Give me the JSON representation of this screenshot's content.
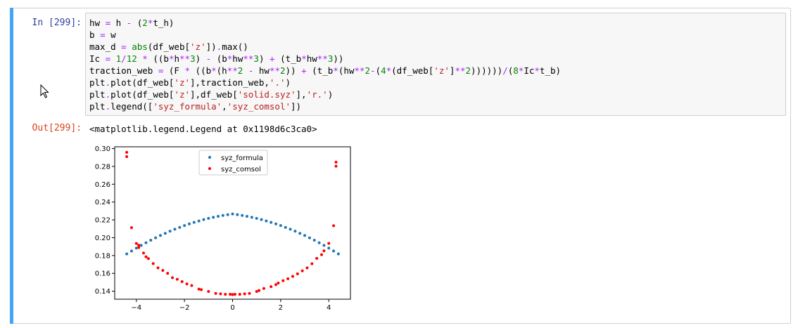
{
  "cell": {
    "in_prompt": "In [299]:",
    "out_prompt": "Out[299]:",
    "code_lines": [
      [
        [
          "hw ",
          "#000000"
        ],
        [
          "=",
          "#aa22ff"
        ],
        [
          " h ",
          "#000000"
        ],
        [
          "-",
          "#aa22ff"
        ],
        [
          " (",
          "#000000"
        ],
        [
          "2",
          "#008800"
        ],
        [
          "*",
          "#aa22ff"
        ],
        [
          "t_h)",
          "#000000"
        ]
      ],
      [
        [
          "b ",
          "#000000"
        ],
        [
          "=",
          "#aa22ff"
        ],
        [
          " w",
          "#000000"
        ]
      ],
      [
        [
          "max_d ",
          "#000000"
        ],
        [
          "=",
          "#aa22ff"
        ],
        [
          " ",
          "#000000"
        ],
        [
          "abs",
          "#008000"
        ],
        [
          "(df_web[",
          "#000000"
        ],
        [
          "'z'",
          "#ba2121"
        ],
        [
          "])",
          "#000000"
        ],
        [
          ".",
          "#aa22ff"
        ],
        [
          "max()",
          "#000000"
        ]
      ],
      [
        [
          "Ic ",
          "#000000"
        ],
        [
          "=",
          "#aa22ff"
        ],
        [
          " ",
          "#000000"
        ],
        [
          "1",
          "#008800"
        ],
        [
          "/",
          "#aa22ff"
        ],
        [
          "12",
          "#008800"
        ],
        [
          " ",
          "#000000"
        ],
        [
          "*",
          "#aa22ff"
        ],
        [
          " ((b",
          "#000000"
        ],
        [
          "*",
          "#aa22ff"
        ],
        [
          "h",
          "#000000"
        ],
        [
          "**",
          "#aa22ff"
        ],
        [
          "3",
          "#008800"
        ],
        [
          ") ",
          "#000000"
        ],
        [
          "-",
          "#aa22ff"
        ],
        [
          " (b",
          "#000000"
        ],
        [
          "*",
          "#aa22ff"
        ],
        [
          "hw",
          "#000000"
        ],
        [
          "**",
          "#aa22ff"
        ],
        [
          "3",
          "#008800"
        ],
        [
          ") ",
          "#000000"
        ],
        [
          "+",
          "#aa22ff"
        ],
        [
          " (t_b",
          "#000000"
        ],
        [
          "*",
          "#aa22ff"
        ],
        [
          "hw",
          "#000000"
        ],
        [
          "**",
          "#aa22ff"
        ],
        [
          "3",
          "#008800"
        ],
        [
          "))",
          "#000000"
        ]
      ],
      [
        [
          "traction_web ",
          "#000000"
        ],
        [
          "=",
          "#aa22ff"
        ],
        [
          " (F ",
          "#000000"
        ],
        [
          "*",
          "#aa22ff"
        ],
        [
          " ((b",
          "#000000"
        ],
        [
          "*",
          "#aa22ff"
        ],
        [
          "(h",
          "#000000"
        ],
        [
          "**",
          "#aa22ff"
        ],
        [
          "2",
          "#008800"
        ],
        [
          " ",
          "#000000"
        ],
        [
          "-",
          "#aa22ff"
        ],
        [
          " hw",
          "#000000"
        ],
        [
          "**",
          "#aa22ff"
        ],
        [
          "2",
          "#008800"
        ],
        [
          ")) ",
          "#000000"
        ],
        [
          "+",
          "#aa22ff"
        ],
        [
          " (t_b",
          "#000000"
        ],
        [
          "*",
          "#aa22ff"
        ],
        [
          "(hw",
          "#000000"
        ],
        [
          "**",
          "#aa22ff"
        ],
        [
          "2",
          "#008800"
        ],
        [
          "-",
          "#aa22ff"
        ],
        [
          "(",
          "#000000"
        ],
        [
          "4",
          "#008800"
        ],
        [
          "*",
          "#aa22ff"
        ],
        [
          "(df_web[",
          "#000000"
        ],
        [
          "'z'",
          "#ba2121"
        ],
        [
          "]",
          "#000000"
        ],
        [
          "**",
          "#aa22ff"
        ],
        [
          "2",
          "#008800"
        ],
        [
          "))))))",
          "#000000"
        ],
        [
          "/",
          "#aa22ff"
        ],
        [
          "(",
          "#000000"
        ],
        [
          "8",
          "#008800"
        ],
        [
          "*",
          "#aa22ff"
        ],
        [
          "Ic",
          "#000000"
        ],
        [
          "*",
          "#aa22ff"
        ],
        [
          "t_b)",
          "#000000"
        ]
      ],
      [
        [
          "plt",
          "#000000"
        ],
        [
          ".",
          "#aa22ff"
        ],
        [
          "plot(df_web[",
          "#000000"
        ],
        [
          "'z'",
          "#ba2121"
        ],
        [
          "],traction_web,",
          "#000000"
        ],
        [
          "'.'",
          "#ba2121"
        ],
        [
          ")",
          "#000000"
        ]
      ],
      [
        [
          "plt",
          "#000000"
        ],
        [
          ".",
          "#aa22ff"
        ],
        [
          "plot(df_web[",
          "#000000"
        ],
        [
          "'z'",
          "#ba2121"
        ],
        [
          "],df_web[",
          "#000000"
        ],
        [
          "'solid.syz'",
          "#ba2121"
        ],
        [
          "],",
          "#000000"
        ],
        [
          "'r.'",
          "#ba2121"
        ],
        [
          ")",
          "#000000"
        ]
      ],
      [
        [
          "plt",
          "#000000"
        ],
        [
          ".",
          "#aa22ff"
        ],
        [
          "legend([",
          "#000000"
        ],
        [
          "'syz_formula'",
          "#ba2121"
        ],
        [
          ",",
          "#000000"
        ],
        [
          "'syz_comsol'",
          "#ba2121"
        ],
        [
          "])",
          "#000000"
        ]
      ]
    ],
    "output_text": "<matplotlib.legend.Legend at 0x1198d6c3ca0>"
  },
  "chart_data": {
    "type": "scatter",
    "xlim": [
      -4.9,
      4.9
    ],
    "ylim": [
      0.131,
      0.302
    ],
    "xticks": [
      -4,
      -2,
      0,
      2,
      4
    ],
    "xtick_labels": [
      "−4",
      "−2",
      "0",
      "2",
      "4"
    ],
    "yticks": [
      0.14,
      0.16,
      0.18,
      0.2,
      0.22,
      0.24,
      0.26,
      0.28,
      0.3
    ],
    "ytick_labels": [
      "0.14",
      "0.16",
      "0.18",
      "0.20",
      "0.22",
      "0.24",
      "0.26",
      "0.28",
      "0.30"
    ],
    "legend_position": "upper-center",
    "series": [
      {
        "name": "syz_formula",
        "color": "#1f77b4",
        "x": [
          -4.4,
          -4.2,
          -4.0,
          -3.8,
          -3.6,
          -3.4,
          -3.2,
          -3.0,
          -2.8,
          -2.6,
          -2.4,
          -2.2,
          -2.0,
          -1.8,
          -1.6,
          -1.4,
          -1.2,
          -1.0,
          -0.8,
          -0.6,
          -0.4,
          -0.2,
          0.0,
          0.2,
          0.4,
          0.6,
          0.8,
          1.0,
          1.2,
          1.4,
          1.6,
          1.8,
          2.0,
          2.2,
          2.4,
          2.6,
          2.8,
          3.0,
          3.2,
          3.4,
          3.6,
          3.8,
          4.0,
          4.2,
          4.4
        ],
        "y": [
          0.1818,
          0.1851,
          0.1883,
          0.1914,
          0.1943,
          0.1972,
          0.1999,
          0.2025,
          0.2049,
          0.2073,
          0.2095,
          0.2116,
          0.2136,
          0.2155,
          0.2172,
          0.2188,
          0.2203,
          0.2217,
          0.2229,
          0.224,
          0.225,
          0.2259,
          0.2266,
          0.2259,
          0.225,
          0.224,
          0.2229,
          0.2217,
          0.2203,
          0.2188,
          0.2172,
          0.2155,
          0.2136,
          0.2116,
          0.2095,
          0.2073,
          0.2049,
          0.2025,
          0.1999,
          0.1972,
          0.1943,
          0.1914,
          0.1883,
          0.1851,
          0.1818
        ]
      },
      {
        "name": "syz_comsol",
        "color": "#ff0000",
        "x": [
          -4.4,
          -4.4,
          -4.2,
          -4.0,
          -3.9,
          -3.9,
          -3.7,
          -3.6,
          -3.5,
          -3.3,
          -3.1,
          -2.9,
          -2.7,
          -2.5,
          -2.3,
          -2.1,
          -1.9,
          -1.7,
          -1.4,
          -1.3,
          -1.0,
          -0.7,
          -0.5,
          -0.3,
          -0.1,
          0.0,
          0.1,
          0.3,
          0.5,
          0.7,
          1.0,
          1.1,
          1.3,
          1.6,
          1.8,
          1.9,
          2.1,
          2.3,
          2.5,
          2.7,
          2.9,
          3.1,
          3.3,
          3.5,
          3.7,
          3.8,
          4.0,
          4.2,
          4.3,
          4.3
        ],
        "y": [
          0.2958,
          0.291,
          0.2113,
          0.1935,
          0.1916,
          0.189,
          0.1828,
          0.1786,
          0.1766,
          0.171,
          0.1662,
          0.1633,
          0.1601,
          0.1551,
          0.1534,
          0.1507,
          0.1481,
          0.1464,
          0.1423,
          0.1417,
          0.1397,
          0.1375,
          0.137,
          0.1365,
          0.1365,
          0.1362,
          0.1365,
          0.1365,
          0.137,
          0.1375,
          0.1397,
          0.1408,
          0.143,
          0.1451,
          0.1474,
          0.1491,
          0.1518,
          0.154,
          0.1566,
          0.1595,
          0.1628,
          0.1662,
          0.1708,
          0.1768,
          0.1809,
          0.1853,
          0.1936,
          0.2134,
          0.2848,
          0.2802
        ]
      }
    ]
  }
}
